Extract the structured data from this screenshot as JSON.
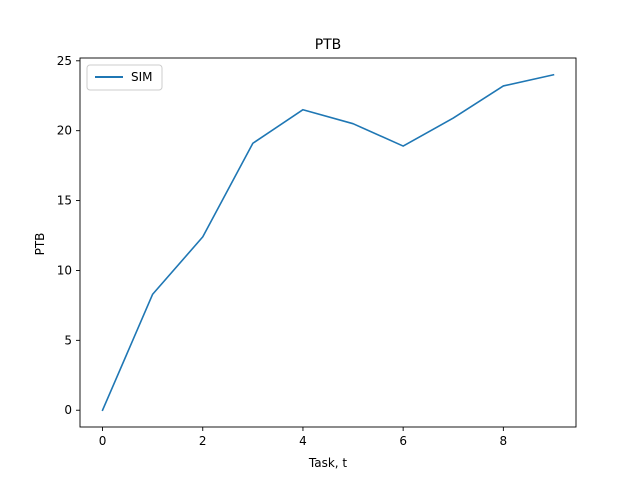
{
  "chart_data": {
    "type": "line",
    "title": "PTB",
    "xlabel": "Task, t",
    "ylabel": "PTB",
    "x": [
      0,
      1,
      2,
      3,
      4,
      5,
      6,
      7,
      8,
      9
    ],
    "series": [
      {
        "name": "SIM",
        "color": "#1f77b4",
        "values": [
          0.0,
          8.3,
          12.4,
          19.1,
          21.5,
          20.5,
          18.9,
          20.9,
          23.2,
          24.0
        ]
      }
    ],
    "xlim": [
      -0.45,
      9.45
    ],
    "ylim": [
      -1.2,
      25.2
    ],
    "xticks": [
      "0",
      "2",
      "4",
      "6",
      "8"
    ],
    "yticks": [
      "0",
      "5",
      "10",
      "15",
      "20",
      "25"
    ],
    "grid": false,
    "legend_position": "top-left"
  }
}
